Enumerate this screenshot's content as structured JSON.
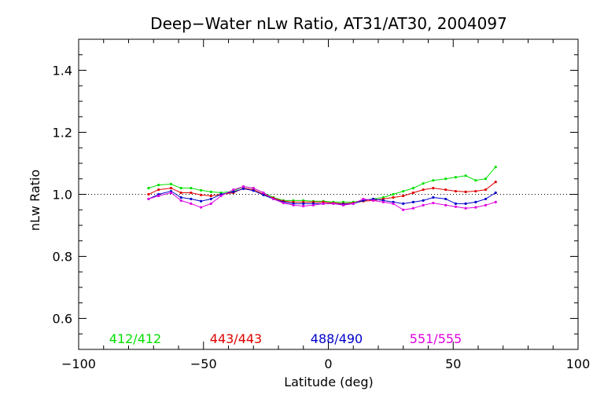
{
  "chart_data": {
    "type": "line",
    "title": "Deep−Water nLw Ratio, AT31/AT30, 2004097",
    "xlabel": "Latitude (deg)",
    "ylabel": "nLw Ratio",
    "xlim": [
      -100,
      100
    ],
    "ylim": [
      0.5,
      1.5
    ],
    "xticks": [
      -100,
      -50,
      0,
      50,
      100
    ],
    "xtick_labels": [
      "−100",
      "−50",
      "0",
      "50",
      "100"
    ],
    "yticks": [
      0.6,
      0.8,
      1.0,
      1.2,
      1.4
    ],
    "ytick_labels": [
      "0.6",
      "0.8",
      "1.0",
      "1.2",
      "1.4"
    ],
    "reference_line": {
      "y": 1.0,
      "style": "dotted"
    },
    "x": [
      -72,
      -68,
      -63,
      -59,
      -55,
      -51,
      -47,
      -43,
      -38,
      -34,
      -30,
      -26,
      -22,
      -18,
      -14,
      -10,
      -6,
      -2,
      2,
      6,
      10,
      14,
      18,
      22,
      26,
      30,
      34,
      38,
      42,
      47,
      51,
      55,
      59,
      63,
      67
    ],
    "series": [
      {
        "name": "412/412",
        "color": "#00e000",
        "values": [
          1.02,
          1.03,
          1.033,
          1.02,
          1.02,
          1.013,
          1.008,
          1.005,
          1.01,
          1.025,
          1.02,
          1.005,
          0.99,
          0.98,
          0.98,
          0.98,
          0.978,
          0.978,
          0.975,
          0.975,
          0.975,
          0.98,
          0.985,
          0.99,
          1.0,
          1.01,
          1.02,
          1.035,
          1.045,
          1.05,
          1.055,
          1.06,
          1.045,
          1.05,
          1.088
        ]
      },
      {
        "name": "443/443",
        "color": "#e00000",
        "values": [
          1.0,
          1.015,
          1.02,
          1.005,
          1.005,
          0.998,
          0.995,
          1.0,
          1.005,
          1.02,
          1.015,
          1.0,
          0.988,
          0.978,
          0.975,
          0.975,
          0.975,
          0.975,
          0.972,
          0.97,
          0.972,
          0.978,
          0.98,
          0.985,
          0.99,
          0.995,
          1.005,
          1.015,
          1.02,
          1.015,
          1.01,
          1.008,
          1.01,
          1.015,
          1.04
        ]
      },
      {
        "name": "488/490",
        "color": "#0000cc",
        "values": [
          0.985,
          1.0,
          1.01,
          0.99,
          0.985,
          0.978,
          0.985,
          1.0,
          1.008,
          1.018,
          1.012,
          0.998,
          0.985,
          0.975,
          0.97,
          0.97,
          0.97,
          0.97,
          0.97,
          0.968,
          0.97,
          0.98,
          0.985,
          0.98,
          0.975,
          0.97,
          0.975,
          0.98,
          0.99,
          0.985,
          0.97,
          0.97,
          0.975,
          0.985,
          1.005
        ]
      },
      {
        "name": "551/555",
        "color": "#e000e0",
        "values": [
          0.985,
          0.995,
          1.005,
          0.98,
          0.97,
          0.958,
          0.97,
          0.995,
          1.015,
          1.025,
          1.02,
          1.005,
          0.985,
          0.972,
          0.965,
          0.962,
          0.965,
          0.97,
          0.97,
          0.965,
          0.97,
          0.985,
          0.98,
          0.975,
          0.97,
          0.95,
          0.955,
          0.965,
          0.972,
          0.965,
          0.96,
          0.955,
          0.958,
          0.965,
          0.975
        ]
      }
    ]
  }
}
